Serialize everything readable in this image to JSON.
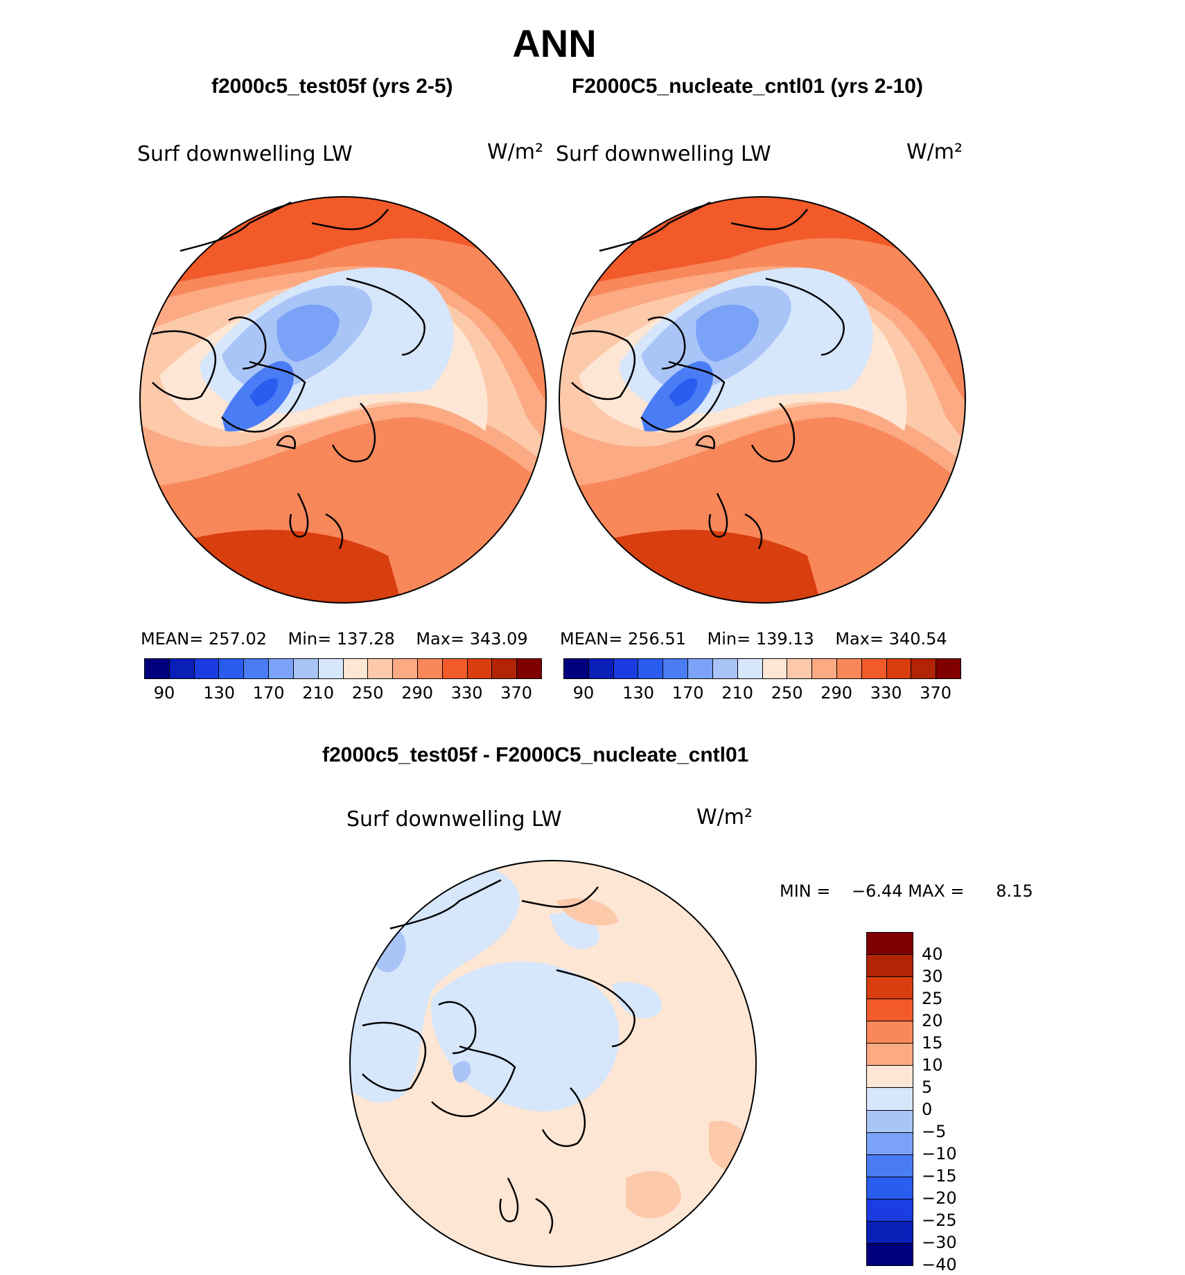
{
  "title": "ANN",
  "panels": [
    {
      "title": "f2000c5_test05f (yrs 2-5)",
      "var_label": "Surf downwelling LW",
      "unit": "W/m²",
      "stats": {
        "mean_label": "MEAN=",
        "mean": "257.02",
        "min_label": "Min=",
        "min": "137.28",
        "max_label": "Max=",
        "max": "343.09"
      }
    },
    {
      "title": "F2000C5_nucleate_cntl01 (yrs 2-10)",
      "var_label": "Surf downwelling LW",
      "unit": "W/m²",
      "stats": {
        "mean_label": "MEAN=",
        "mean": "256.51",
        "min_label": "Min=",
        "min": "139.13",
        "max_label": "Max=",
        "max": "340.54"
      }
    }
  ],
  "abs_colorbar": {
    "colors": [
      "#00007f",
      "#0a1eb8",
      "#1a3ce0",
      "#2b5cf0",
      "#4a7df5",
      "#7aa3f8",
      "#a9c4f7",
      "#d6e6fb",
      "#fde6d4",
      "#fdc9ab",
      "#fbaa83",
      "#f8875a",
      "#f25a2a",
      "#d93e0f",
      "#b22406",
      "#800000"
    ],
    "ticks": [
      "90",
      "130",
      "170",
      "210",
      "250",
      "290",
      "330",
      "370"
    ]
  },
  "diff_panel": {
    "title": "f2000c5_test05f - F2000C5_nucleate_cntl01",
    "var_label": "Surf downwelling LW",
    "unit": "W/m²",
    "min_label": "MIN =",
    "min": "−6.44",
    "max_label": "MAX =",
    "max": "8.15"
  },
  "diff_colorbar": {
    "colors": [
      "#800000",
      "#b22406",
      "#d93e0f",
      "#f25a2a",
      "#f8875a",
      "#fbaa83",
      "#fde6d4",
      "#d6e6fb",
      "#a9c4f7",
      "#7aa3f8",
      "#4a7df5",
      "#2b5cf0",
      "#1a3ce0",
      "#0a1eb8",
      "#00007f"
    ],
    "ticks": [
      "40",
      "30",
      "25",
      "20",
      "15",
      "10",
      "5",
      "0",
      "−5",
      "−10",
      "−15",
      "−20",
      "−25",
      "−30",
      "−40"
    ]
  }
}
